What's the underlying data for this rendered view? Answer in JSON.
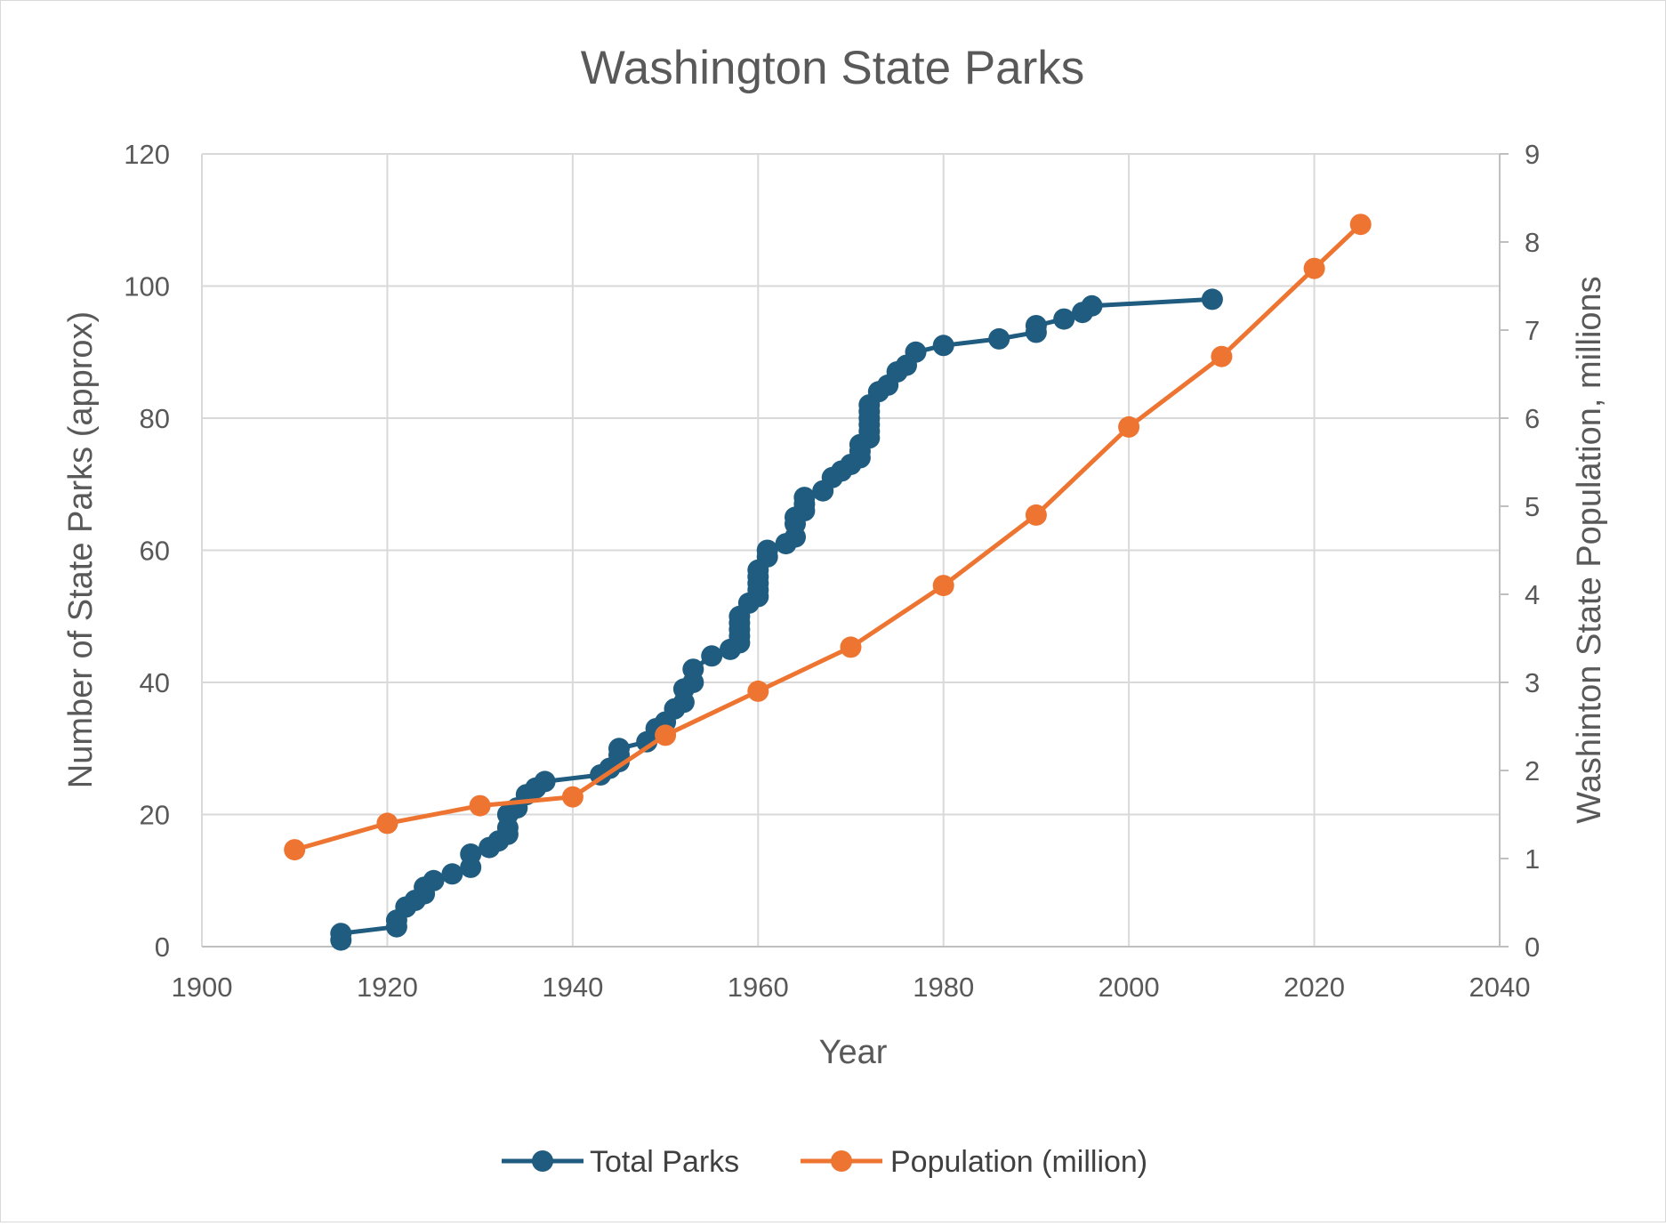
{
  "chart_data": {
    "type": "line",
    "title": "Washington State Parks",
    "xlabel": "Year",
    "ylabel": "Number of State Parks (approx)",
    "y2label": "Washinton State Population, millions",
    "xlim": [
      1900,
      2040
    ],
    "ylim": [
      0,
      120
    ],
    "y2lim": [
      0,
      9
    ],
    "x_ticks": [
      "1900",
      "1920",
      "1940",
      "1960",
      "1980",
      "2000",
      "2020",
      "2040"
    ],
    "y_ticks": [
      "0",
      "20",
      "40",
      "60",
      "80",
      "100",
      "120"
    ],
    "y2_ticks": [
      "0",
      "1",
      "2",
      "3",
      "4",
      "5",
      "6",
      "7",
      "8",
      "9"
    ],
    "grid": true,
    "legend_position": "bottom",
    "series": [
      {
        "name": "Total Parks",
        "axis": "left",
        "color": "#1f5c7f",
        "x": [
          1915,
          1915,
          1921,
          1921,
          1922,
          1923,
          1924,
          1924,
          1925,
          1927,
          1929,
          1929,
          1931,
          1932,
          1933,
          1933,
          1933,
          1934,
          1935,
          1936,
          1937,
          1943,
          1944,
          1945,
          1945,
          1945,
          1948,
          1949,
          1950,
          1951,
          1952,
          1952,
          1953,
          1953,
          1955,
          1957,
          1958,
          1958,
          1958,
          1958,
          1958,
          1959,
          1960,
          1960,
          1960,
          1960,
          1960,
          1961,
          1961,
          1963,
          1964,
          1964,
          1964,
          1965,
          1965,
          1965,
          1967,
          1968,
          1969,
          1970,
          1971,
          1971,
          1971,
          1972,
          1972,
          1972,
          1972,
          1972,
          1972,
          1973,
          1974,
          1975,
          1976,
          1977,
          1980,
          1986,
          1990,
          1990,
          1993,
          1995,
          1996,
          2009
        ],
        "y": [
          1,
          2,
          3,
          4,
          6,
          7,
          8,
          9,
          10,
          11,
          12,
          14,
          15,
          16,
          17,
          18,
          20,
          21,
          23,
          24,
          25,
          26,
          27,
          28,
          29,
          30,
          31,
          33,
          34,
          36,
          37,
          39,
          40,
          42,
          44,
          45,
          46,
          47,
          48,
          49,
          50,
          52,
          53,
          54,
          55,
          56,
          57,
          59,
          60,
          61,
          62,
          64,
          65,
          66,
          67,
          68,
          69,
          71,
          72,
          73,
          74,
          75,
          76,
          77,
          78,
          79,
          80,
          81,
          82,
          84,
          85,
          87,
          88,
          90,
          91,
          92,
          93,
          94,
          95,
          96,
          97,
          98
        ]
      },
      {
        "name": "Population (million)",
        "axis": "right",
        "color": "#ed7531",
        "x": [
          1910,
          1920,
          1930,
          1940,
          1950,
          1960,
          1970,
          1980,
          1990,
          2000,
          2010,
          2020,
          2025
        ],
        "y": [
          1.1,
          1.4,
          1.6,
          1.7,
          2.4,
          2.9,
          3.4,
          4.1,
          4.9,
          5.9,
          6.7,
          7.7,
          8.2
        ]
      }
    ]
  }
}
